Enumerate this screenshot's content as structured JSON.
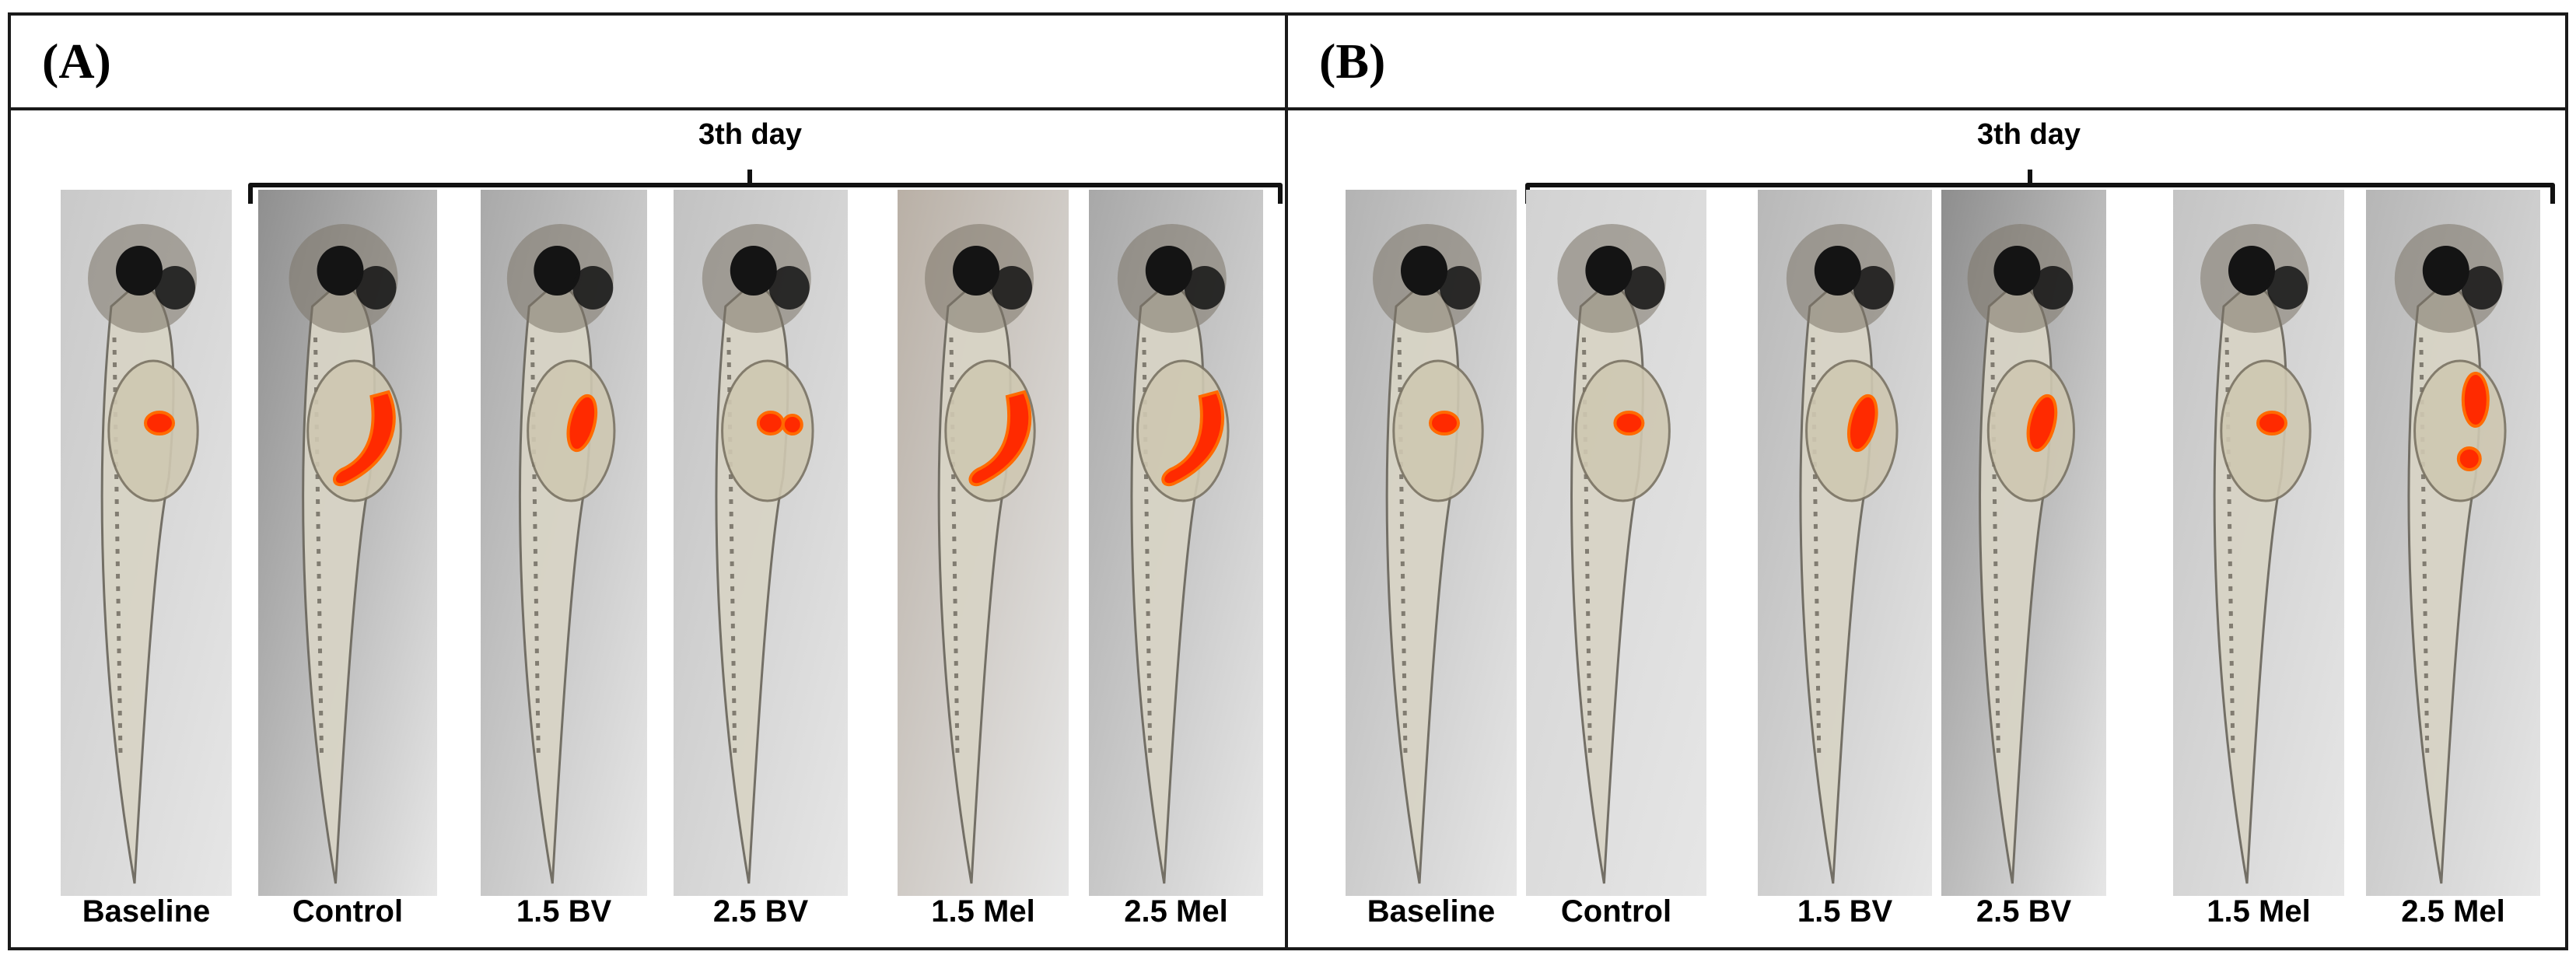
{
  "panels": [
    {
      "letter": "(A)",
      "day_label": "3th day",
      "images": [
        {
          "label": "Baseline",
          "bg": "#c9c9c9",
          "lesion": "small-round"
        },
        {
          "label": "Control",
          "bg": "#8f8f8f",
          "lesion": "large-hook"
        },
        {
          "label": "1.5 BV",
          "bg": "#a9a9a9",
          "lesion": "medium-elongated"
        },
        {
          "label": "2.5 BV",
          "bg": "#c2c2c2",
          "lesion": "small-pair"
        },
        {
          "label": "1.5 Mel",
          "bg": "#b9b0a6",
          "lesion": "large-hook"
        },
        {
          "label": "2.5 Mel",
          "bg": "#a8a8a8",
          "lesion": "large-hook"
        }
      ]
    },
    {
      "letter": "(B)",
      "day_label": "3th day",
      "images": [
        {
          "label": "Baseline",
          "bg": "#b3b3b3",
          "lesion": "small-round"
        },
        {
          "label": "Control",
          "bg": "#d2d2d2",
          "lesion": "small-round"
        },
        {
          "label": "1.5 BV",
          "bg": "#b8b8b8",
          "lesion": "medium-elongated"
        },
        {
          "label": "2.5 BV",
          "bg": "#8e8e8e",
          "lesion": "medium-elongated"
        },
        {
          "label": "1.5 Mel",
          "bg": "#c4c4c4",
          "lesion": "small-round"
        },
        {
          "label": "2.5 Mel",
          "bg": "#b6b6b6",
          "lesion": "split"
        }
      ]
    }
  ],
  "colors": {
    "border": "#1a1a1a",
    "lesion_fill": "#ff2a00",
    "lesion_glow": "#ff6a00",
    "fish_body": "#d8d4c6",
    "fish_eye": "#141414"
  }
}
